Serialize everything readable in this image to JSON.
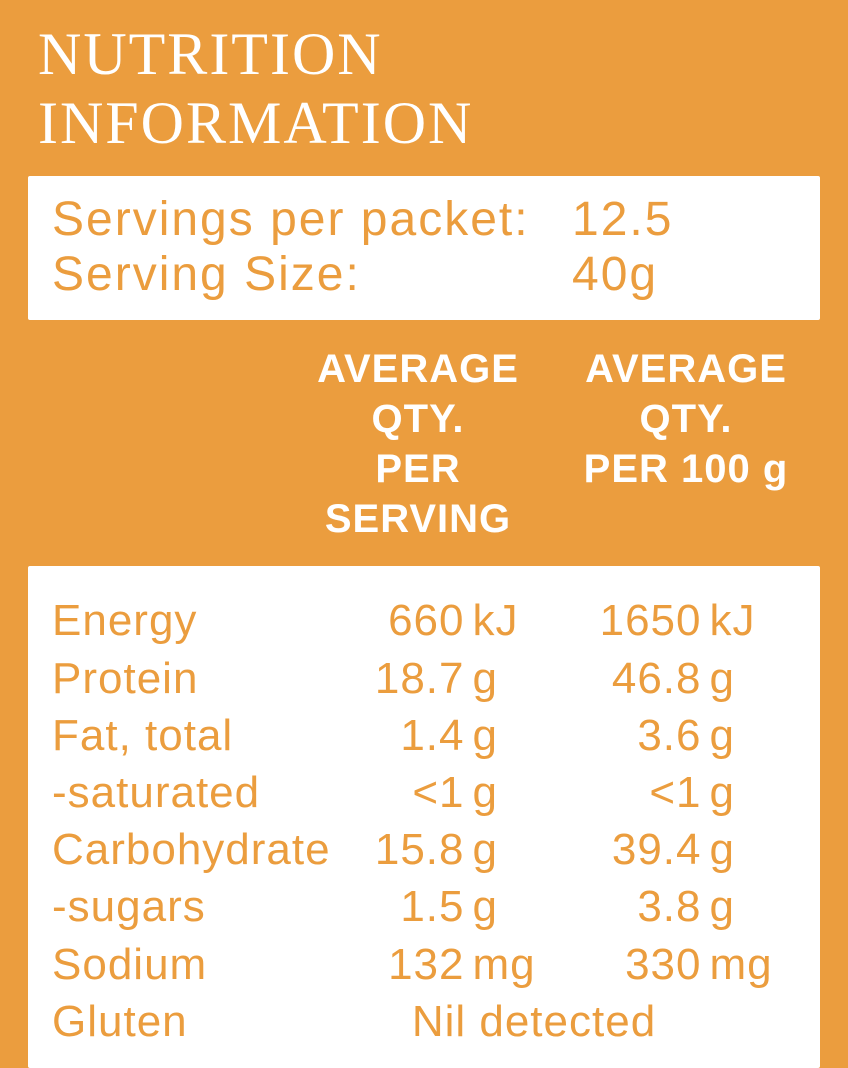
{
  "title": "NUTRITION INFORMATION",
  "servings": {
    "per_packet_label": "Servings per packet:",
    "per_packet_value": "12.5",
    "size_label": "Serving Size:",
    "size_value": "40g"
  },
  "headers": {
    "col1_line1": "AVERAGE QTY.",
    "col1_line2": "PER SERVING",
    "col2_line1": "AVERAGE QTY.",
    "col2_line2": "PER 100 g"
  },
  "rows": [
    {
      "label": "Energy",
      "v1_num": "660",
      "v1_unit": "kJ",
      "v2_num": "1650",
      "v2_unit": "kJ"
    },
    {
      "label": "Protein",
      "v1_num": "18.7",
      "v1_unit": "g",
      "v2_num": "46.8",
      "v2_unit": "g"
    },
    {
      "label": "Fat, total",
      "v1_num": "1.4",
      "v1_unit": "g",
      "v2_num": "3.6",
      "v2_unit": "g"
    },
    {
      "label": "-saturated",
      "v1_num": "<1",
      "v1_unit": "g",
      "v2_num": "<1",
      "v2_unit": "g"
    },
    {
      "label": "Carbohydrate",
      "v1_num": "15.8",
      "v1_unit": "g",
      "v2_num": "39.4",
      "v2_unit": "g"
    },
    {
      "label": "-sugars",
      "v1_num": "1.5",
      "v1_unit": "g",
      "v2_num": "3.8",
      "v2_unit": "g"
    },
    {
      "label": "Sodium",
      "v1_num": "132",
      "v1_unit": "mg",
      "v2_num": "330",
      "v2_unit": "mg"
    }
  ],
  "gluten": {
    "label": "Gluten",
    "value": "Nil detected"
  },
  "colors": {
    "background": "#eb9d3e",
    "panel": "#ffffff",
    "text_on_orange": "#ffffff",
    "text_on_white": "#eb9d3e"
  }
}
